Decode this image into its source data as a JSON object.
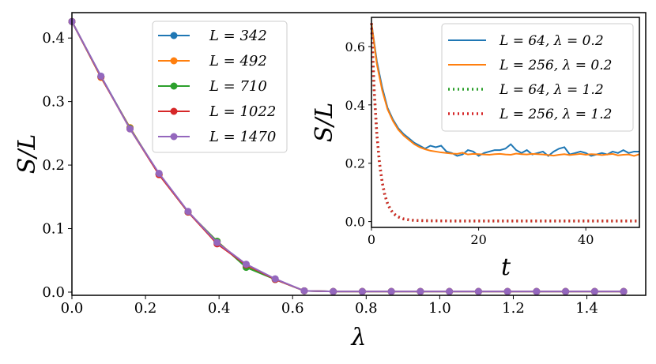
{
  "chart_data": [
    {
      "type": "line",
      "xlabel": "λ",
      "ylabel": "S/L",
      "xlim": [
        0.0,
        1.56
      ],
      "ylim": [
        -0.005,
        0.44
      ],
      "xticks": [
        0.0,
        0.2,
        0.4,
        0.6,
        0.8,
        1.0,
        1.2,
        1.4
      ],
      "xtick_labels": [
        "0.0",
        "0.2",
        "0.4",
        "0.6",
        "0.8",
        "1.0",
        "1.2",
        "1.4"
      ],
      "yticks": [
        0.0,
        0.1,
        0.2,
        0.3,
        0.4
      ],
      "ytick_labels": [
        "0.0",
        "0.1",
        "0.2",
        "0.3",
        "0.4"
      ],
      "legend_position": "top-center",
      "x": [
        0.0,
        0.0789,
        0.1579,
        0.2368,
        0.3158,
        0.3947,
        0.4737,
        0.5526,
        0.6316,
        0.7105,
        0.7895,
        0.8684,
        0.9474,
        1.0263,
        1.1053,
        1.1842,
        1.2632,
        1.3421,
        1.4211,
        1.5
      ],
      "series": [
        {
          "name": "L = 342",
          "color": "#1f77b4",
          "values": [
            0.426,
            0.34,
            0.258,
            0.186,
            0.126,
            0.079,
            0.041,
            0.02,
            0.002,
            0.001,
            0.001,
            0.001,
            0.001,
            0.001,
            0.001,
            0.001,
            0.001,
            0.001,
            0.001,
            0.001
          ]
        },
        {
          "name": "L = 492",
          "color": "#ff7f0e",
          "values": [
            0.426,
            0.338,
            0.259,
            0.185,
            0.126,
            0.08,
            0.041,
            0.02,
            0.002,
            0.001,
            0.001,
            0.001,
            0.001,
            0.001,
            0.001,
            0.001,
            0.001,
            0.001,
            0.001,
            0.001
          ]
        },
        {
          "name": "L = 710",
          "color": "#2ca02c",
          "values": [
            0.426,
            0.339,
            0.258,
            0.186,
            0.126,
            0.08,
            0.039,
            0.02,
            0.002,
            0.001,
            0.001,
            0.001,
            0.001,
            0.001,
            0.001,
            0.001,
            0.001,
            0.001,
            0.001,
            0.001
          ]
        },
        {
          "name": "L = 1022",
          "color": "#d62728",
          "values": [
            0.426,
            0.339,
            0.257,
            0.185,
            0.126,
            0.076,
            0.043,
            0.02,
            0.002,
            0.001,
            0.001,
            0.001,
            0.001,
            0.001,
            0.001,
            0.001,
            0.001,
            0.001,
            0.001,
            0.001
          ]
        },
        {
          "name": "L = 1470",
          "color": "#9467bd",
          "values": [
            0.426,
            0.34,
            0.257,
            0.187,
            0.127,
            0.078,
            0.044,
            0.021,
            0.002,
            0.001,
            0.001,
            0.001,
            0.001,
            0.001,
            0.001,
            0.001,
            0.001,
            0.001,
            0.001,
            0.001
          ]
        }
      ]
    },
    {
      "type": "line",
      "inset": true,
      "xlabel": "t",
      "ylabel": "S/L",
      "xlim": [
        0,
        50
      ],
      "ylim": [
        -0.02,
        0.7
      ],
      "xticks": [
        0,
        20,
        40
      ],
      "xtick_labels": [
        "0",
        "20",
        "40"
      ],
      "yticks": [
        0.0,
        0.2,
        0.4,
        0.6
      ],
      "ytick_labels": [
        "0.0",
        "0.2",
        "0.4",
        "0.6"
      ],
      "legend_position": "top-right",
      "series": [
        {
          "name": "L = 64, λ = 0.2",
          "color": "#1f77b4",
          "style": "solid",
          "x": [
            0,
            1,
            2,
            3,
            4,
            5,
            6,
            7,
            8,
            9,
            10,
            11,
            12,
            13,
            14,
            15,
            16,
            17,
            18,
            19,
            20,
            21,
            22,
            23,
            24,
            25,
            26,
            27,
            28,
            29,
            30,
            31,
            32,
            33,
            34,
            35,
            36,
            37,
            38,
            39,
            40,
            41,
            42,
            43,
            44,
            45,
            46,
            47,
            48,
            49,
            50
          ],
          "values": [
            0.68,
            0.55,
            0.46,
            0.39,
            0.35,
            0.32,
            0.3,
            0.285,
            0.27,
            0.26,
            0.25,
            0.26,
            0.255,
            0.26,
            0.24,
            0.235,
            0.225,
            0.23,
            0.245,
            0.24,
            0.225,
            0.235,
            0.24,
            0.245,
            0.245,
            0.25,
            0.265,
            0.245,
            0.235,
            0.245,
            0.23,
            0.235,
            0.24,
            0.225,
            0.24,
            0.25,
            0.255,
            0.23,
            0.235,
            0.24,
            0.235,
            0.225,
            0.23,
            0.235,
            0.23,
            0.24,
            0.235,
            0.245,
            0.235,
            0.24,
            0.24
          ]
        },
        {
          "name": "L = 256, λ = 0.2",
          "color": "#ff7f0e",
          "style": "solid",
          "x": [
            0,
            1,
            2,
            3,
            4,
            5,
            6,
            7,
            8,
            9,
            10,
            11,
            12,
            13,
            14,
            15,
            16,
            17,
            18,
            19,
            20,
            21,
            22,
            23,
            24,
            25,
            26,
            27,
            28,
            29,
            30,
            31,
            32,
            33,
            34,
            35,
            36,
            37,
            38,
            39,
            40,
            41,
            42,
            43,
            44,
            45,
            46,
            47,
            48,
            49,
            50
          ],
          "values": [
            0.68,
            0.54,
            0.45,
            0.385,
            0.345,
            0.315,
            0.295,
            0.28,
            0.265,
            0.255,
            0.248,
            0.243,
            0.24,
            0.237,
            0.235,
            0.233,
            0.232,
            0.236,
            0.23,
            0.232,
            0.231,
            0.23,
            0.229,
            0.231,
            0.232,
            0.23,
            0.229,
            0.233,
            0.231,
            0.23,
            0.232,
            0.231,
            0.23,
            0.228,
            0.226,
            0.229,
            0.231,
            0.228,
            0.23,
            0.232,
            0.229,
            0.231,
            0.23,
            0.228,
            0.23,
            0.232,
            0.227,
            0.229,
            0.23,
            0.225,
            0.231
          ]
        },
        {
          "name": "L = 64, λ = 1.2",
          "color": "#2ca02c",
          "style": "dotted",
          "x": [
            0,
            0.5,
            1,
            1.5,
            2,
            2.5,
            3,
            3.5,
            4,
            4.5,
            5,
            5.5,
            6,
            7,
            8,
            10,
            15,
            20,
            30,
            40,
            50
          ],
          "values": [
            0.68,
            0.45,
            0.3,
            0.2,
            0.135,
            0.09,
            0.062,
            0.043,
            0.03,
            0.022,
            0.016,
            0.012,
            0.009,
            0.006,
            0.004,
            0.003,
            0.002,
            0.002,
            0.002,
            0.002,
            0.002
          ]
        },
        {
          "name": "L = 256, λ = 1.2",
          "color": "#d62728",
          "style": "dotted",
          "x": [
            0,
            0.5,
            1,
            1.5,
            2,
            2.5,
            3,
            3.5,
            4,
            4.5,
            5,
            5.5,
            6,
            7,
            8,
            10,
            15,
            20,
            30,
            40,
            50
          ],
          "values": [
            0.68,
            0.45,
            0.3,
            0.2,
            0.135,
            0.09,
            0.062,
            0.043,
            0.03,
            0.022,
            0.016,
            0.012,
            0.009,
            0.006,
            0.004,
            0.003,
            0.002,
            0.002,
            0.002,
            0.002,
            0.002
          ]
        }
      ]
    }
  ]
}
